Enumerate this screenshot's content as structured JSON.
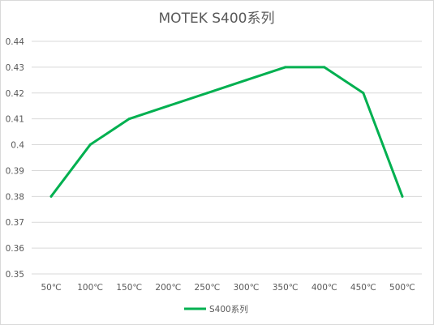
{
  "chart_data": {
    "type": "line",
    "title": "MOTEK  S400系列",
    "xlabel": "",
    "ylabel": "",
    "categories": [
      "50℃",
      "100℃",
      "150℃",
      "200℃",
      "250℃",
      "300℃",
      "350℃",
      "400℃",
      "450℃",
      "500℃"
    ],
    "series": [
      {
        "name": "S400系列",
        "values": [
          0.38,
          0.4,
          0.41,
          0.415,
          0.42,
          0.425,
          0.43,
          0.43,
          0.42,
          0.38
        ],
        "color": "#00b050"
      }
    ],
    "ylim": [
      0.35,
      0.44
    ],
    "yticks": [
      "0.35",
      "0.36",
      "0.37",
      "0.38",
      "0.39",
      "0.4",
      "0.41",
      "0.42",
      "0.43",
      "0.44"
    ],
    "grid": true,
    "gridColor": "#d9d9d9",
    "legend": "bottom"
  }
}
